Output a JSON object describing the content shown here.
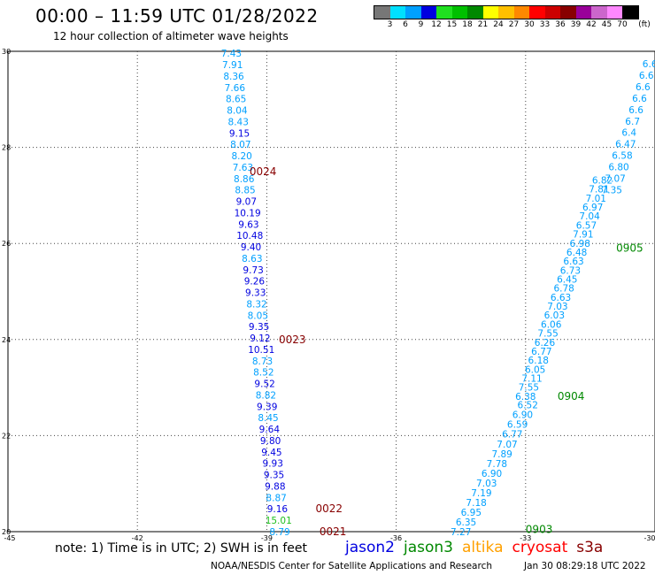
{
  "header": {
    "title": "00:00 – 11:59 UTC 01/28/2022",
    "subtitle": "12 hour collection of altimeter wave heights"
  },
  "colorbar": {
    "unit_label": "(ft)",
    "colors": [
      "#777777",
      "#00e0ff",
      "#00a0ff",
      "#0000e0",
      "#20e020",
      "#00c000",
      "#008800",
      "#ffff00",
      "#ffc000",
      "#ff8800",
      "#ff0000",
      "#cc0000",
      "#880000",
      "#990099",
      "#cc66cc",
      "#ff88ff",
      "#000000"
    ],
    "labels": [
      "3",
      "6",
      "9",
      "12",
      "15",
      "18",
      "21",
      "24",
      "27",
      "30",
      "33",
      "36",
      "39",
      "42",
      "45",
      "70"
    ]
  },
  "axes": {
    "x_ticks": [
      "-45",
      "-42",
      "-39",
      "-36",
      "-33",
      "-30"
    ],
    "y_ticks": [
      "20",
      "22",
      "24",
      "26",
      "28",
      "30"
    ]
  },
  "chart_data": {
    "type": "scatter",
    "title": "00:00 – 11:59 UTC 01/28/2022",
    "subtitle": "12 hour collection of altimeter wave heights",
    "xlim": [
      -45,
      -30
    ],
    "ylim": [
      20,
      30
    ],
    "grid": true,
    "passes": [
      {
        "pass_time": "0024",
        "time_label_at": [
          -39.4,
          27.5
        ],
        "time_label_color": "#880000",
        "start": [
          -39.82,
          29.96
        ],
        "end": [
          -38.7,
          20.0
        ],
        "points": [
          {
            "swh": "7.43",
            "color": "#00a0ff"
          },
          {
            "swh": "7.91",
            "color": "#00a0ff"
          },
          {
            "swh": "8.36",
            "color": "#00a0ff"
          },
          {
            "swh": "7.66",
            "color": "#00a0ff"
          },
          {
            "swh": "8.65",
            "color": "#00a0ff"
          },
          {
            "swh": "8.04",
            "color": "#00a0ff"
          },
          {
            "swh": "8.43",
            "color": "#00a0ff"
          },
          {
            "swh": "9.15",
            "color": "#0000e0"
          },
          {
            "swh": "8.07",
            "color": "#00a0ff"
          },
          {
            "swh": "8.20",
            "color": "#00a0ff"
          },
          {
            "swh": "7.63",
            "color": "#00a0ff"
          },
          {
            "swh": "8.86",
            "color": "#00a0ff"
          },
          {
            "swh": "8.85",
            "color": "#00a0ff"
          },
          {
            "swh": "9.07",
            "color": "#0000e0"
          },
          {
            "swh": "10.19",
            "color": "#0000e0"
          },
          {
            "swh": "9.63",
            "color": "#0000e0"
          },
          {
            "swh": "10.48",
            "color": "#0000e0"
          },
          {
            "swh": "9.40",
            "color": "#0000e0"
          },
          {
            "swh": "8.63",
            "color": "#00a0ff"
          },
          {
            "swh": "9.73",
            "color": "#0000e0"
          },
          {
            "swh": "9.26",
            "color": "#0000e0"
          },
          {
            "swh": "9.33",
            "color": "#0000e0"
          },
          {
            "swh": "8.32",
            "color": "#00a0ff"
          },
          {
            "swh": "8.05",
            "color": "#00a0ff"
          },
          {
            "swh": "9.35",
            "color": "#0000e0"
          },
          {
            "swh": "9.12",
            "color": "#0000e0"
          },
          {
            "swh": "10.51",
            "color": "#0000e0"
          },
          {
            "swh": "8.73",
            "color": "#00a0ff"
          },
          {
            "swh": "8.52",
            "color": "#00a0ff"
          },
          {
            "swh": "9.52",
            "color": "#0000e0"
          },
          {
            "swh": "8.82",
            "color": "#00a0ff"
          },
          {
            "swh": "9.39",
            "color": "#0000e0"
          },
          {
            "swh": "8.45",
            "color": "#00a0ff"
          },
          {
            "swh": "9.64",
            "color": "#0000e0"
          },
          {
            "swh": "9.80",
            "color": "#0000e0"
          },
          {
            "swh": "9.45",
            "color": "#0000e0"
          },
          {
            "swh": "9.93",
            "color": "#0000e0"
          },
          {
            "swh": "9.35",
            "color": "#0000e0"
          },
          {
            "swh": "9.88",
            "color": "#0000e0"
          },
          {
            "swh": "8.87",
            "color": "#00a0ff"
          },
          {
            "swh": "9.16",
            "color": "#0000e0"
          },
          {
            "swh": "15.01",
            "color": "#20c020"
          },
          {
            "swh": "8.79",
            "color": "#00a0ff"
          }
        ]
      },
      {
        "pass_time": "0023",
        "time_label_at": [
          -38.72,
          24.0
        ],
        "time_label_color": "#880000",
        "points": []
      },
      {
        "pass_time": "0022",
        "time_label_at": [
          -37.87,
          20.48
        ],
        "time_label_color": "#880000",
        "points": []
      },
      {
        "pass_time": "0021",
        "time_label_at": [
          -37.78,
          20.0
        ],
        "time_label_color": "#880000",
        "points": []
      },
      {
        "pass_time": "0905",
        "time_label_at": [
          -30.9,
          25.9
        ],
        "time_label_color": "#008800",
        "start": [
          -30.12,
          29.74
        ],
        "end": [
          -31.0,
          27.12
        ],
        "points": [
          {
            "swh": "6.6",
            "color": "#00a0ff"
          },
          {
            "swh": "6.6",
            "color": "#00a0ff"
          },
          {
            "swh": "6.6",
            "color": "#00a0ff"
          },
          {
            "swh": "6.6",
            "color": "#00a0ff"
          },
          {
            "swh": "6.6",
            "color": "#00a0ff"
          },
          {
            "swh": "6.7",
            "color": "#00a0ff"
          },
          {
            "swh": "6.4",
            "color": "#00a0ff"
          },
          {
            "swh": "6.47",
            "color": "#00a0ff"
          },
          {
            "swh": "6.58",
            "color": "#00a0ff"
          },
          {
            "swh": "6.80",
            "color": "#00a0ff"
          },
          {
            "swh": "7.07",
            "color": "#00a0ff"
          },
          {
            "swh": "7.35",
            "color": "#00a0ff"
          }
        ]
      },
      {
        "pass_time": "0904",
        "time_label_at": [
          -32.26,
          22.82
        ],
        "time_label_color": "#008800",
        "start": [
          -31.22,
          27.32
        ],
        "end": [
          -33.0,
          22.82
        ],
        "points": [
          {
            "swh": "6.82",
            "color": "#00a0ff"
          },
          {
            "swh": "7.81",
            "color": "#00a0ff"
          },
          {
            "swh": "7.01",
            "color": "#00a0ff"
          },
          {
            "swh": "6.97",
            "color": "#00a0ff"
          },
          {
            "swh": "7.04",
            "color": "#00a0ff"
          },
          {
            "swh": "6.57",
            "color": "#00a0ff"
          },
          {
            "swh": "7.91",
            "color": "#00a0ff"
          },
          {
            "swh": "6.98",
            "color": "#00a0ff"
          },
          {
            "swh": "6.48",
            "color": "#00a0ff"
          },
          {
            "swh": "6.63",
            "color": "#00a0ff"
          },
          {
            "swh": "6.73",
            "color": "#00a0ff"
          },
          {
            "swh": "6.45",
            "color": "#00a0ff"
          },
          {
            "swh": "6.78",
            "color": "#00a0ff"
          },
          {
            "swh": "6.63",
            "color": "#00a0ff"
          },
          {
            "swh": "7.03",
            "color": "#00a0ff"
          },
          {
            "swh": "6.03",
            "color": "#00a0ff"
          },
          {
            "swh": "6.06",
            "color": "#00a0ff"
          },
          {
            "swh": "7.55",
            "color": "#00a0ff"
          },
          {
            "swh": "6.26",
            "color": "#00a0ff"
          },
          {
            "swh": "6.77",
            "color": "#00a0ff"
          },
          {
            "swh": "6.18",
            "color": "#00a0ff"
          },
          {
            "swh": "6.05",
            "color": "#00a0ff"
          },
          {
            "swh": "7.11",
            "color": "#00a0ff"
          },
          {
            "swh": "7.55",
            "color": "#00a0ff"
          },
          {
            "swh": "6.38",
            "color": "#00a0ff"
          }
        ]
      },
      {
        "pass_time": "0903",
        "time_label_at": [
          -33.0,
          20.05
        ],
        "time_label_color": "#008800",
        "start": [
          -32.95,
          22.64
        ],
        "end": [
          -34.5,
          20.0
        ],
        "points": [
          {
            "swh": "6.52",
            "color": "#00a0ff"
          },
          {
            "swh": "6.90",
            "color": "#00a0ff"
          },
          {
            "swh": "6.59",
            "color": "#00a0ff"
          },
          {
            "swh": "6.77",
            "color": "#00a0ff"
          },
          {
            "swh": "7.07",
            "color": "#00a0ff"
          },
          {
            "swh": "7.89",
            "color": "#00a0ff"
          },
          {
            "swh": "7.78",
            "color": "#00a0ff"
          },
          {
            "swh": "6.90",
            "color": "#00a0ff"
          },
          {
            "swh": "7.03",
            "color": "#00a0ff"
          },
          {
            "swh": "7.19",
            "color": "#00a0ff"
          },
          {
            "swh": "7.18",
            "color": "#00a0ff"
          },
          {
            "swh": "6.95",
            "color": "#00a0ff"
          },
          {
            "swh": "6.35",
            "color": "#00a0ff"
          },
          {
            "swh": "7.27",
            "color": "#00a0ff"
          }
        ]
      }
    ]
  },
  "note": "note: 1) Time is in UTC; 2) SWH is in feet",
  "legend": [
    {
      "name": "jason2",
      "color": "#0000e0"
    },
    {
      "name": "jason3",
      "color": "#008800"
    },
    {
      "name": "altika",
      "color": "#ffa000"
    },
    {
      "name": "cryosat",
      "color": "#ff0000"
    },
    {
      "name": "s3a",
      "color": "#880000"
    }
  ],
  "footer": {
    "credit": "NOAA/NESDIS Center for Satellite Applications and Research",
    "timestamp": "Jan 30 08:29:18 UTC 2022"
  }
}
